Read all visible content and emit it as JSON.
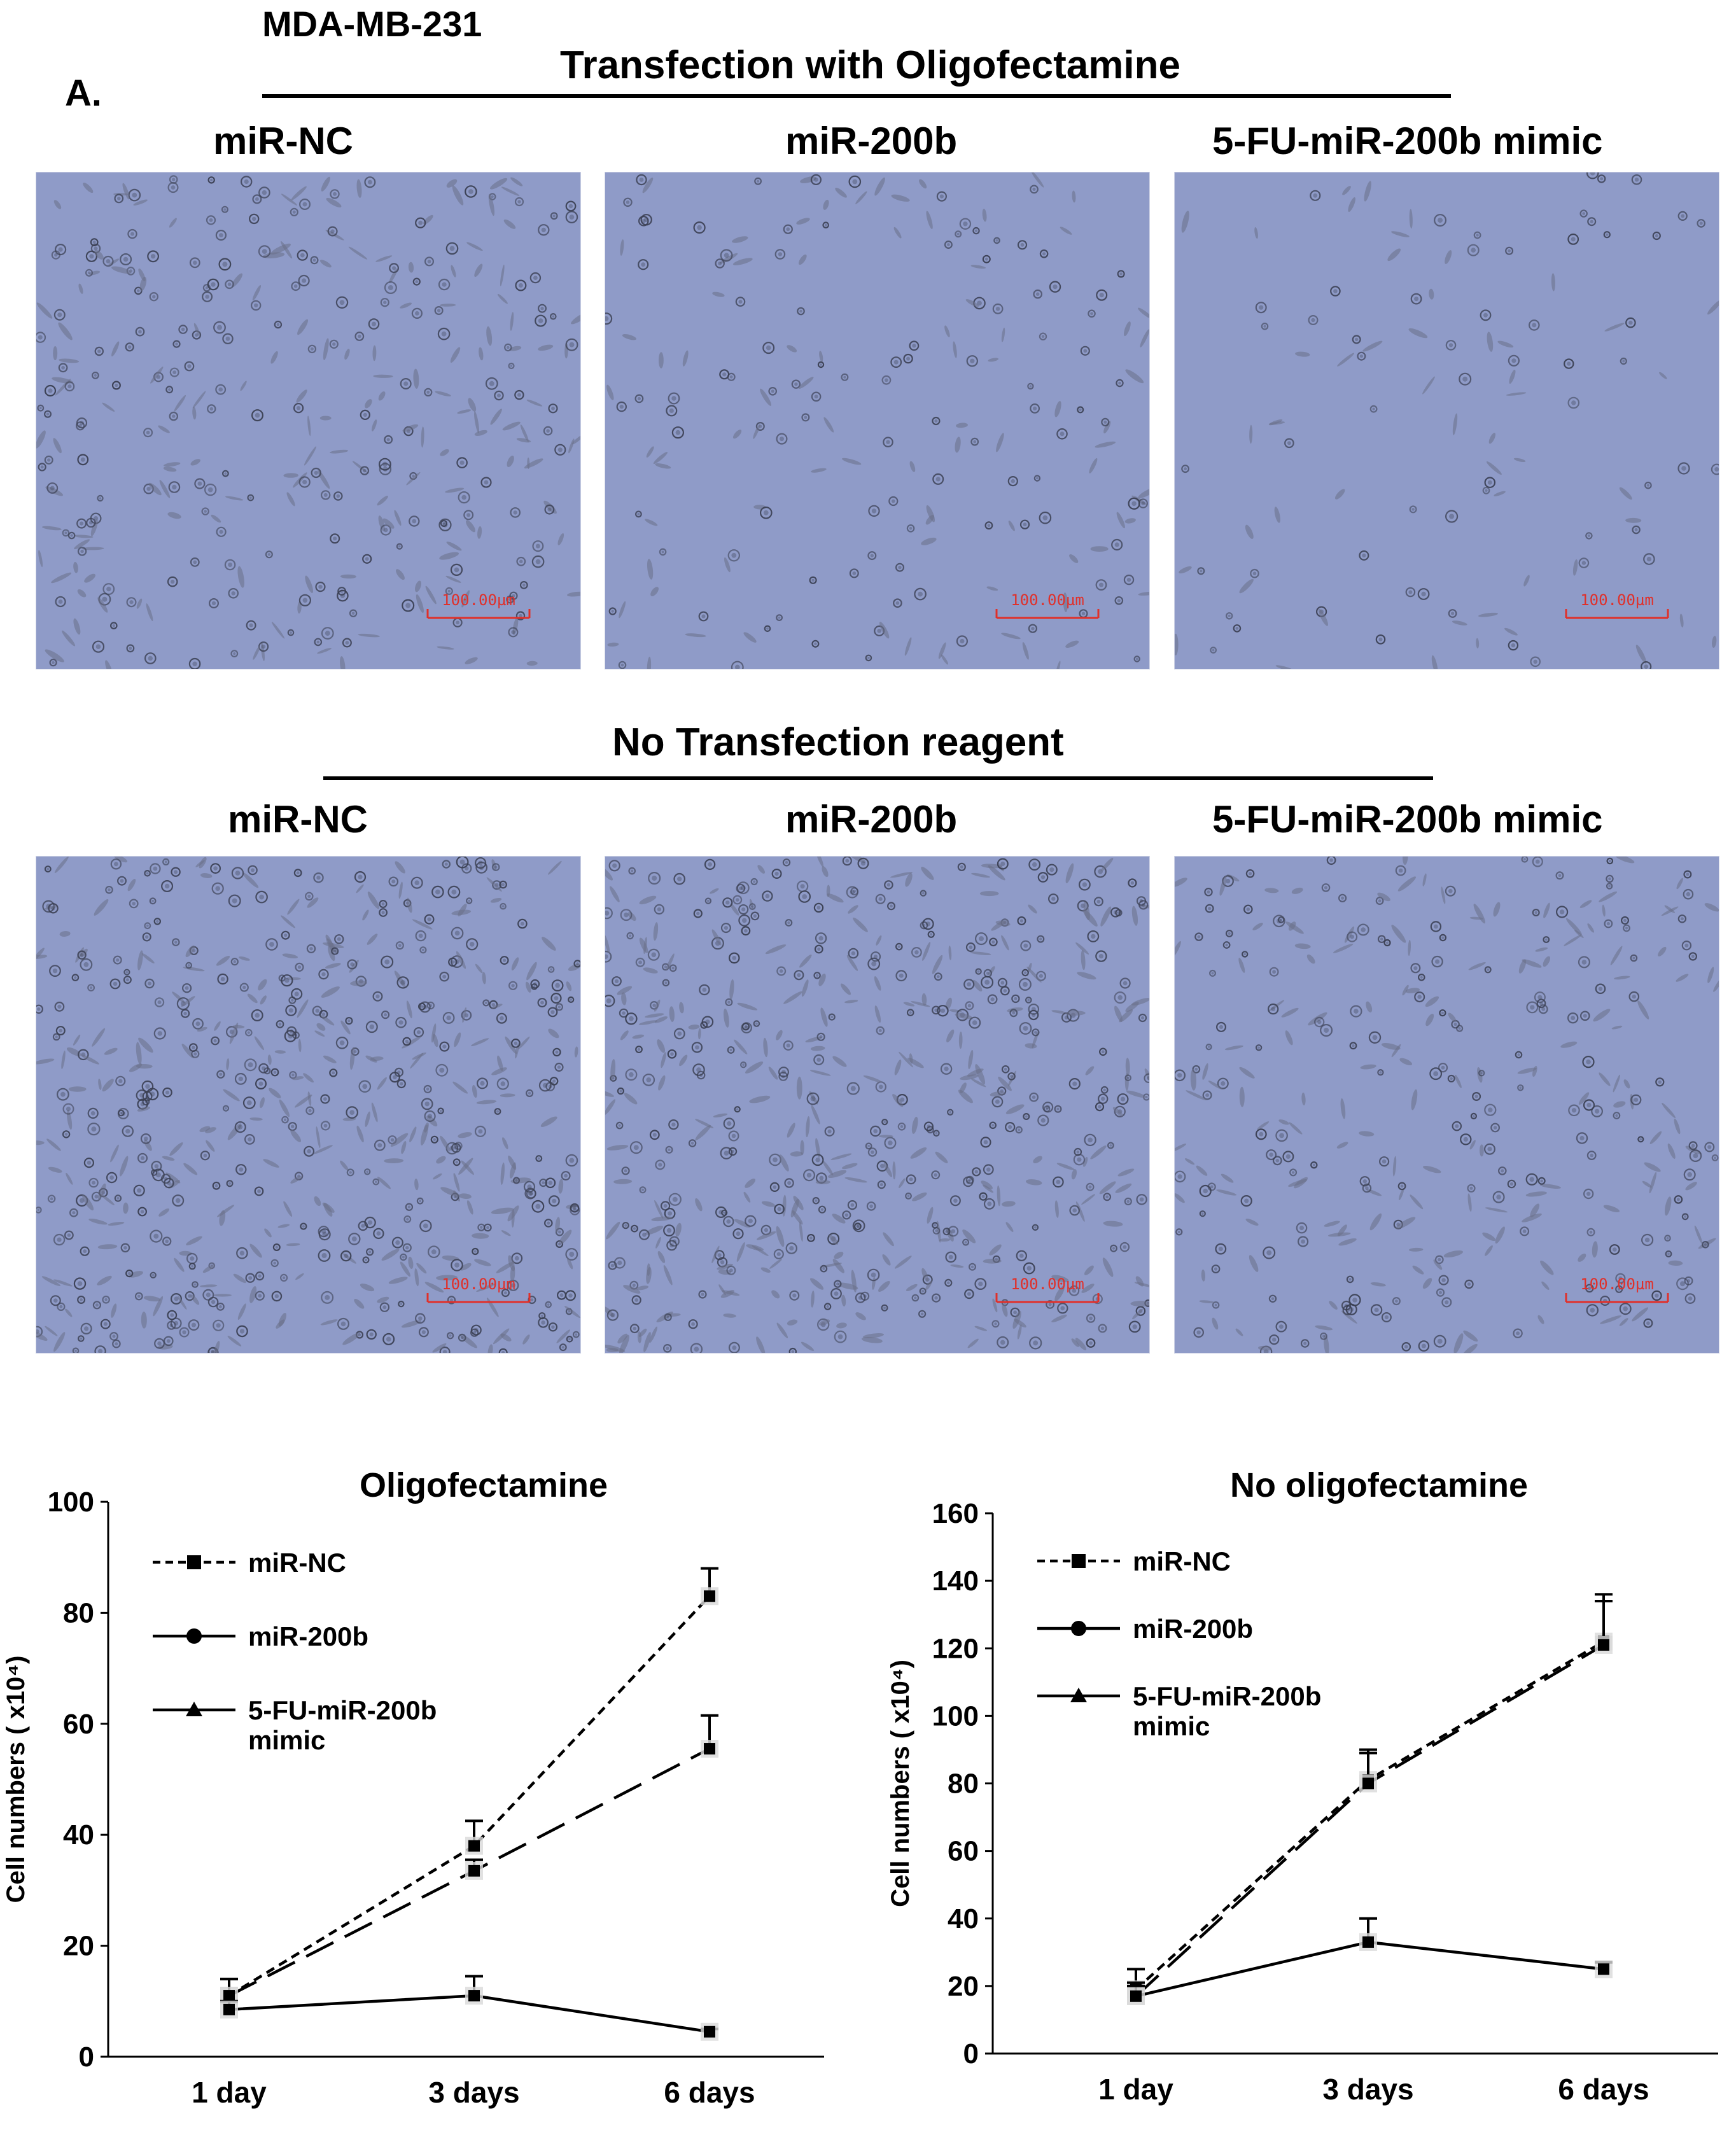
{
  "figure": {
    "cell_line": "MDA-MB-231",
    "panel_letter": "A.",
    "section_1_title": "Transfection with Oligofectamine",
    "section_2_title": "No Transfection reagent",
    "columns": [
      "miR-NC",
      "miR-200b",
      "5-FU-miR-200b mimic"
    ],
    "scale_bar_label": "100.00µm"
  },
  "colors": {
    "micrograph_background": "#8f9bc8",
    "cell": "#3a3f52",
    "scale_bar": "#e0302a"
  },
  "legend": {
    "items": [
      "miR-NC",
      "miR-200b",
      "5-FU-miR-200b",
      "mimic"
    ]
  },
  "chart_data": [
    {
      "type": "line",
      "title": "Oligofectamine",
      "xlabel": "",
      "ylabel": "Cell numbers ( x10⁴)",
      "categories": [
        "1 day",
        "3 days",
        "6 days"
      ],
      "ylim": [
        0,
        100
      ],
      "yticks": [
        0,
        20,
        40,
        60,
        80,
        100
      ],
      "grid": false,
      "legend_position": "top-left",
      "series": [
        {
          "name": "miR-NC",
          "values": [
            11,
            38,
            83
          ],
          "errors": [
            3,
            4.5,
            5
          ],
          "style": "short-dash"
        },
        {
          "name": "miR-200b",
          "values": [
            11,
            33.5,
            55.5
          ],
          "errors": [
            3,
            2,
            6
          ],
          "style": "long-dash"
        },
        {
          "name": "5-FU-miR-200b mimic",
          "values": [
            8.5,
            11,
            4.5
          ],
          "errors": [
            1.5,
            3.5,
            0.5
          ],
          "style": "solid"
        }
      ]
    },
    {
      "type": "line",
      "title": "No oligofectamine",
      "xlabel": "",
      "ylabel": "Cell numbers ( x10⁴)",
      "categories": [
        "1 day",
        "3 days",
        "6 days"
      ],
      "ylim": [
        0,
        160
      ],
      "yticks": [
        0,
        20,
        40,
        60,
        80,
        100,
        120,
        140,
        160
      ],
      "grid": false,
      "legend_position": "top-left",
      "series": [
        {
          "name": "miR-NC",
          "values": [
            19,
            81,
            122
          ],
          "errors": [
            6,
            9,
            14
          ],
          "style": "short-dash"
        },
        {
          "name": "miR-200b",
          "values": [
            17,
            80,
            121
          ],
          "errors": [
            4,
            9,
            13
          ],
          "style": "long-dash"
        },
        {
          "name": "5-FU-miR-200b mimic",
          "values": [
            17,
            33,
            25
          ],
          "errors": [
            3,
            7,
            2
          ],
          "style": "solid"
        }
      ]
    }
  ]
}
